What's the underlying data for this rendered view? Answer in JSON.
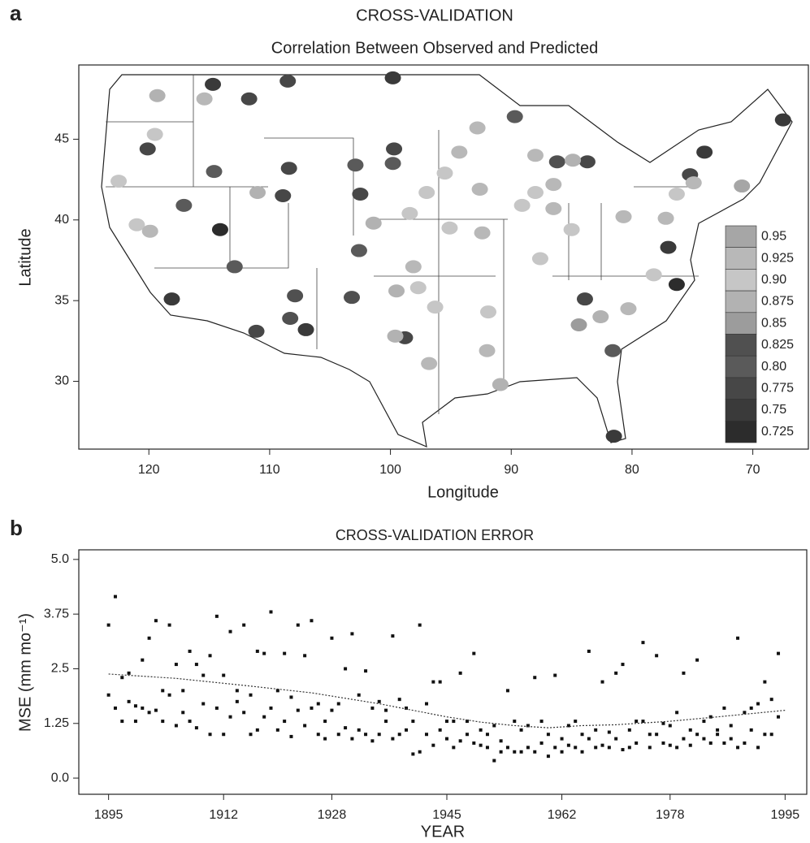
{
  "chart_data": [
    {
      "type": "map",
      "panel": "a",
      "title": "CROSS-VALIDATION",
      "subtitle": "Correlation Between Observed and Predicted",
      "x_label": "Longitude",
      "y_label": "Latitude",
      "xlim": [
        125.8,
        65.4
      ],
      "ylim": [
        25.8,
        49.6
      ],
      "xticks": [
        120,
        110,
        100,
        90,
        80,
        70
      ],
      "yticks": [
        30,
        35,
        40,
        45
      ],
      "x": [
        114.7,
        108.5,
        99.8,
        111.7,
        89.7,
        67.5,
        120.1,
        99.7,
        114.6,
        108.4,
        74.0,
        102.9,
        99.8,
        86.2,
        83.7,
        75.2,
        102.5,
        108.9,
        117.1,
        114.1,
        102.6,
        77.0,
        112.9,
        76.3,
        118.1,
        83.9,
        107.9,
        98.8,
        107.0,
        111.1,
        81.6,
        81.5,
        108.3,
        103.2,
        119.3,
        115.4,
        119.5,
        122.5,
        121.0,
        119.9,
        111.0,
        101.4,
        98.4,
        97.0,
        92.8,
        94.3,
        95.5,
        92.6,
        95.1,
        92.4,
        98.1,
        97.7,
        99.5,
        96.3,
        99.6,
        96.8,
        91.9,
        92.0,
        90.9,
        88.0,
        86.5,
        85.0,
        87.6,
        80.7,
        77.2,
        76.3,
        74.9,
        70.9,
        78.2,
        80.3,
        82.6,
        84.4,
        89.1,
        86.5,
        88.0,
        84.9
      ],
      "y": [
        48.4,
        48.6,
        48.8,
        47.5,
        46.4,
        46.2,
        44.4,
        44.4,
        43.0,
        43.2,
        44.2,
        43.4,
        43.5,
        43.6,
        43.6,
        42.8,
        41.6,
        41.5,
        40.9,
        39.4,
        38.1,
        38.3,
        37.1,
        36.0,
        35.1,
        35.1,
        35.3,
        32.7,
        33.2,
        33.1,
        31.9,
        26.6,
        33.9,
        35.2,
        47.7,
        47.5,
        45.3,
        42.4,
        39.7,
        39.3,
        41.7,
        39.8,
        40.4,
        41.7,
        45.7,
        44.2,
        42.9,
        41.9,
        39.5,
        39.2,
        37.1,
        35.8,
        35.6,
        34.6,
        32.8,
        31.1,
        34.3,
        31.9,
        29.8,
        41.7,
        40.7,
        39.4,
        37.6,
        40.2,
        40.1,
        41.6,
        42.3,
        42.1,
        36.6,
        34.5,
        34.0,
        33.5,
        40.9,
        42.2,
        44.0,
        43.7
      ],
      "values": [
        0.75,
        0.775,
        0.75,
        0.775,
        0.8,
        0.75,
        0.775,
        0.775,
        0.8,
        0.775,
        0.75,
        0.8,
        0.8,
        0.825,
        0.775,
        0.775,
        0.775,
        0.775,
        0.8,
        0.725,
        0.8,
        0.75,
        0.8,
        0.725,
        0.75,
        0.775,
        0.825,
        0.775,
        0.75,
        0.775,
        0.8,
        0.75,
        0.825,
        0.825,
        0.875,
        0.925,
        0.9,
        0.9,
        0.9,
        0.925,
        0.875,
        0.875,
        0.9,
        0.9,
        0.925,
        0.925,
        0.9,
        0.925,
        0.9,
        0.925,
        0.925,
        0.9,
        0.875,
        0.9,
        0.875,
        0.925,
        0.9,
        0.925,
        0.875,
        0.9,
        0.925,
        0.9,
        0.9,
        0.925,
        0.925,
        0.9,
        0.925,
        0.95,
        0.9,
        0.925,
        0.875,
        0.85,
        0.9,
        0.925,
        0.925,
        0.875
      ],
      "colorbar": [
        0.95,
        0.925,
        {
          "value": 0.9,
          "label": "0.90"
        },
        0.875,
        0.85,
        0.825,
        {
          "value": 0.8,
          "label": "0.80"
        },
        0.775,
        0.75,
        0.725
      ],
      "colorbar_colors": [
        "#a6a6a6",
        "#b8b8b8",
        "#c6c6c6",
        "#b2b2b2",
        "#9c9c9c",
        "#505050",
        "#5a5a5a",
        "#474747",
        "#3a3a3a",
        "#2c2c2c"
      ]
    },
    {
      "type": "scatter",
      "panel": "b",
      "title": "CROSS-VALIDATION ERROR",
      "x_label": "YEAR",
      "y_label": "MSE (mm mo⁻¹)",
      "xlim": [
        1890.6,
        1998.2
      ],
      "ylim": [
        -0.37,
        5.22
      ],
      "xticks": [
        1895,
        1912,
        1928,
        1945,
        1962,
        1978,
        1995
      ],
      "yticks": [
        {
          "value": 0,
          "label": "0.0"
        },
        1.25,
        2.5,
        3.75,
        {
          "value": 5,
          "label": "5.0"
        }
      ],
      "points": {
        "color": "#111",
        "x": [
          1895,
          1895,
          1896,
          1896,
          1897,
          1897,
          1898,
          1898,
          1899,
          1899,
          1900,
          1900,
          1901,
          1901,
          1902,
          1902,
          1903,
          1903,
          1904,
          1904,
          1905,
          1905,
          1906,
          1906,
          1907,
          1907,
          1908,
          1908,
          1909,
          1909,
          1910,
          1910,
          1911,
          1911,
          1912,
          1912,
          1913,
          1913,
          1914,
          1914,
          1915,
          1915,
          1916,
          1916,
          1917,
          1917,
          1918,
          1918,
          1919,
          1919,
          1920,
          1920,
          1921,
          1921,
          1922,
          1922,
          1923,
          1923,
          1924,
          1924,
          1925,
          1925,
          1926,
          1926,
          1927,
          1927,
          1928,
          1928,
          1929,
          1929,
          1930,
          1930,
          1931,
          1931,
          1932,
          1932,
          1933,
          1933,
          1934,
          1934,
          1935,
          1935,
          1936,
          1936,
          1937,
          1937,
          1938,
          1938,
          1939,
          1939,
          1940,
          1940,
          1941,
          1941,
          1942,
          1942,
          1943,
          1943,
          1944,
          1944,
          1945,
          1945,
          1946,
          1946,
          1947,
          1947,
          1948,
          1948,
          1949,
          1949,
          1950,
          1950,
          1951,
          1951,
          1952,
          1952,
          1953,
          1953,
          1954,
          1954,
          1955,
          1955,
          1956,
          1956,
          1957,
          1957,
          1958,
          1958,
          1959,
          1959,
          1960,
          1960,
          1961,
          1961,
          1962,
          1962,
          1963,
          1963,
          1964,
          1964,
          1965,
          1965,
          1966,
          1966,
          1967,
          1967,
          1968,
          1968,
          1969,
          1969,
          1970,
          1970,
          1971,
          1971,
          1972,
          1972,
          1973,
          1973,
          1974,
          1974,
          1975,
          1975,
          1976,
          1976,
          1977,
          1977,
          1978,
          1978,
          1979,
          1979,
          1980,
          1980,
          1981,
          1981,
          1982,
          1982,
          1983,
          1983,
          1984,
          1984,
          1985,
          1985,
          1986,
          1986,
          1987,
          1987,
          1988,
          1988,
          1989,
          1989,
          1990,
          1990,
          1991,
          1991,
          1992,
          1992,
          1993,
          1993,
          1994,
          1994
        ],
        "y": [
          1.9,
          3.5,
          4.15,
          1.6,
          1.3,
          2.3,
          2.4,
          1.75,
          1.3,
          1.65,
          2.7,
          1.6,
          3.2,
          1.5,
          3.6,
          1.55,
          2.0,
          1.3,
          3.5,
          1.9,
          2.6,
          1.2,
          2.0,
          1.5,
          2.9,
          1.3,
          1.15,
          2.6,
          2.35,
          1.7,
          2.8,
          1.0,
          3.7,
          1.6,
          2.35,
          1.0,
          3.35,
          1.4,
          2.0,
          1.75,
          3.5,
          1.5,
          1.9,
          1.0,
          2.9,
          1.1,
          2.85,
          1.4,
          3.8,
          1.6,
          2.0,
          1.1,
          2.85,
          1.3,
          1.85,
          0.95,
          3.5,
          1.55,
          2.8,
          1.2,
          3.6,
          1.6,
          1.7,
          1.0,
          1.3,
          0.9,
          3.2,
          1.55,
          1.0,
          1.7,
          2.5,
          1.15,
          3.3,
          0.9,
          1.9,
          1.1,
          2.45,
          1.0,
          1.6,
          0.85,
          1.75,
          1.0,
          1.3,
          1.55,
          3.25,
          0.9,
          1.8,
          1.0,
          1.1,
          1.6,
          0.55,
          1.3,
          3.5,
          0.6,
          1.0,
          1.7,
          2.2,
          0.75,
          1.1,
          2.2,
          0.9,
          1.3,
          1.3,
          0.7,
          2.4,
          0.85,
          1.0,
          1.3,
          2.85,
          0.8,
          1.1,
          0.75,
          0.7,
          1.0,
          1.2,
          0.4,
          0.85,
          0.6,
          2.0,
          0.7,
          0.6,
          1.3,
          1.1,
          0.6,
          0.7,
          1.2,
          2.3,
          0.6,
          1.3,
          0.8,
          0.5,
          1.0,
          2.35,
          0.7,
          0.9,
          0.6,
          1.2,
          0.75,
          1.3,
          0.7,
          0.6,
          1.0,
          2.9,
          0.9,
          1.1,
          0.7,
          0.75,
          2.2,
          1.05,
          0.7,
          2.4,
          0.9,
          0.65,
          2.6,
          1.1,
          0.7,
          1.3,
          0.8,
          1.3,
          3.1,
          0.7,
          1.0,
          2.8,
          1.0,
          0.8,
          1.25,
          1.2,
          0.75,
          1.5,
          0.7,
          2.4,
          0.9,
          1.1,
          0.75,
          2.7,
          1.0,
          0.9,
          1.3,
          1.4,
          0.8,
          1.0,
          1.1,
          0.8,
          1.6,
          1.2,
          0.9,
          3.2,
          0.7,
          1.5,
          0.8,
          1.1,
          1.6,
          0.7,
          1.7,
          2.2,
          1.0,
          1.8,
          1.0,
          2.85,
          1.4
        ]
      },
      "trend": {
        "color": "#333",
        "x": [
          1895,
          1905,
          1915,
          1925,
          1935,
          1945,
          1950,
          1955,
          1960,
          1965,
          1970,
          1978,
          1985,
          1995
        ],
        "y": [
          2.38,
          2.28,
          2.12,
          1.95,
          1.7,
          1.4,
          1.28,
          1.2,
          1.15,
          1.2,
          1.22,
          1.3,
          1.4,
          1.55
        ]
      }
    }
  ]
}
